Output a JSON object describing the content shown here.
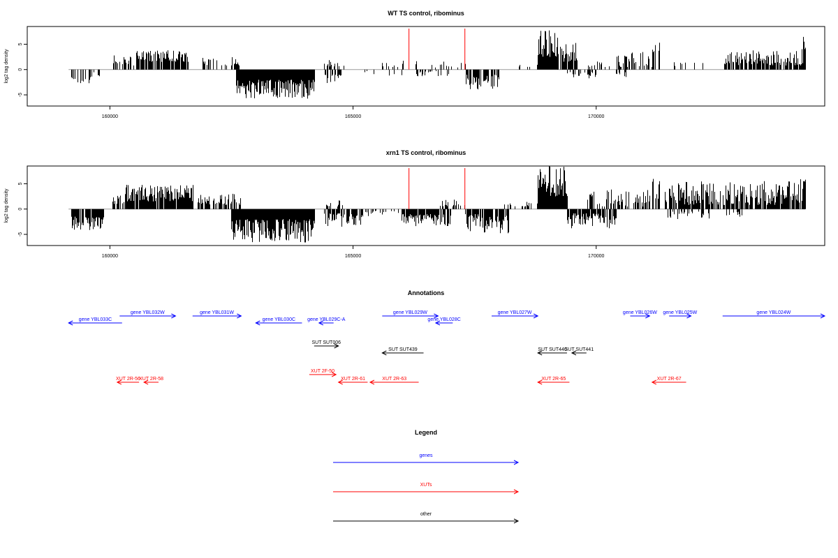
{
  "chart_data": [
    {
      "type": "bar",
      "title": "WT TS control, ribominus",
      "ylabel": "log2 tag density",
      "xlabel": "",
      "xlim": [
        158300,
        174700
      ],
      "ylim": [
        -7.2,
        8.5
      ],
      "yticks": [
        -5,
        0,
        5
      ],
      "xticks": [
        160000,
        165000,
        170000
      ],
      "marker_positions": [
        166150,
        167300
      ],
      "segments": [
        {
          "range": [
            159200,
            159600
          ],
          "sign": -1,
          "min": 1.5,
          "max": 2.7,
          "density": 0.5
        },
        {
          "range": [
            159600,
            159900
          ],
          "sign": -1,
          "min": 0.5,
          "max": 1.5,
          "density": 0.3
        },
        {
          "range": [
            160050,
            160500
          ],
          "sign": 1,
          "min": 0.8,
          "max": 3.0,
          "density": 0.55
        },
        {
          "range": [
            160500,
            161600
          ],
          "sign": 1,
          "min": 1.5,
          "max": 4.0,
          "density": 0.8
        },
        {
          "range": [
            161900,
            162600
          ],
          "sign": 1,
          "min": 0.8,
          "max": 2.8,
          "density": 0.4
        },
        {
          "range": [
            162550,
            162650
          ],
          "sign": 1,
          "min": 0.8,
          "max": 1.4,
          "density": 1.0
        },
        {
          "range": [
            162600,
            164200
          ],
          "sign": -1,
          "min": 2.0,
          "max": 5.8,
          "density": 1.0
        },
        {
          "range": [
            164400,
            164750
          ],
          "sign": -1,
          "min": 1.0,
          "max": 2.8,
          "density": 0.5
        },
        {
          "range": [
            164400,
            164800
          ],
          "sign": 1,
          "min": 0.6,
          "max": 2.0,
          "density": 0.3
        },
        {
          "range": [
            165000,
            165500
          ],
          "sign": -1,
          "min": 0.3,
          "max": 1.2,
          "density": 0.15
        },
        {
          "range": [
            165400,
            166300
          ],
          "sign": 1,
          "min": 0.5,
          "max": 1.8,
          "density": 0.2
        },
        {
          "range": [
            165700,
            166100
          ],
          "sign": -1,
          "min": 0.8,
          "max": 2.5,
          "density": 0.25
        },
        {
          "range": [
            166300,
            167000
          ],
          "sign": -1,
          "min": 0.3,
          "max": 1.4,
          "density": 0.3
        },
        {
          "range": [
            166600,
            167300
          ],
          "sign": 1,
          "min": 0.4,
          "max": 1.6,
          "density": 0.25
        },
        {
          "range": [
            167300,
            168000
          ],
          "sign": -1,
          "min": 1.0,
          "max": 4.0,
          "density": 0.7
        },
        {
          "range": [
            168400,
            168800
          ],
          "sign": 1,
          "min": 0.5,
          "max": 1.2,
          "density": 0.2
        },
        {
          "range": [
            168800,
            169200
          ],
          "sign": 1,
          "min": 2.5,
          "max": 8.0,
          "density": 1.0
        },
        {
          "range": [
            169200,
            169600
          ],
          "sign": 1,
          "min": 1.5,
          "max": 5.5,
          "density": 0.8
        },
        {
          "range": [
            169400,
            170000
          ],
          "sign": -1,
          "min": 0.5,
          "max": 2.0,
          "density": 0.5
        },
        {
          "range": [
            169800,
            170600
          ],
          "sign": 1,
          "min": 0.5,
          "max": 1.8,
          "density": 0.3
        },
        {
          "range": [
            170400,
            170600
          ],
          "sign": -1,
          "min": 0.5,
          "max": 1.5,
          "density": 0.4
        },
        {
          "range": [
            170400,
            171200
          ],
          "sign": 1,
          "min": 0.5,
          "max": 3.5,
          "density": 0.5
        },
        {
          "range": [
            171100,
            171300
          ],
          "sign": 1,
          "min": 2.5,
          "max": 6.0,
          "density": 0.4
        },
        {
          "range": [
            171600,
            171900
          ],
          "sign": 1,
          "min": 0.5,
          "max": 1.5,
          "density": 0.2
        },
        {
          "range": [
            172000,
            172200
          ],
          "sign": 1,
          "min": 0.8,
          "max": 1.5,
          "density": 0.5
        },
        {
          "range": [
            172600,
            174300
          ],
          "sign": 1,
          "min": 0.8,
          "max": 3.8,
          "density": 0.75
        },
        {
          "range": [
            174200,
            174300
          ],
          "sign": 1,
          "min": 4.0,
          "max": 6.5,
          "density": 0.5
        }
      ]
    },
    {
      "type": "bar",
      "title": "xrn1 TS control, ribominus",
      "ylabel": "log2 tag density",
      "xlabel": "",
      "xlim": [
        158300,
        174700
      ],
      "ylim": [
        -7.2,
        8.5
      ],
      "yticks": [
        -5,
        0,
        5
      ],
      "xticks": [
        160000,
        165000,
        170000
      ],
      "marker_positions": [
        166150,
        167300
      ],
      "segments": [
        {
          "range": [
            159200,
            159900
          ],
          "sign": -1,
          "min": 1.5,
          "max": 4.2,
          "density": 0.85
        },
        {
          "range": [
            160050,
            160400
          ],
          "sign": 1,
          "min": 1.0,
          "max": 2.8,
          "density": 0.6
        },
        {
          "range": [
            160300,
            161700
          ],
          "sign": 1,
          "min": 1.5,
          "max": 4.8,
          "density": 0.9
        },
        {
          "range": [
            161700,
            162700
          ],
          "sign": 1,
          "min": 0.8,
          "max": 3.2,
          "density": 0.6
        },
        {
          "range": [
            162500,
            164200
          ],
          "sign": -1,
          "min": 2.0,
          "max": 6.6,
          "density": 1.0
        },
        {
          "range": [
            164400,
            165200
          ],
          "sign": -1,
          "min": 0.8,
          "max": 3.5,
          "density": 0.7
        },
        {
          "range": [
            164400,
            164800
          ],
          "sign": 1,
          "min": 0.5,
          "max": 1.8,
          "density": 0.3
        },
        {
          "range": [
            165200,
            166000
          ],
          "sign": -1,
          "min": 0.3,
          "max": 1.5,
          "density": 0.3
        },
        {
          "range": [
            166000,
            167000
          ],
          "sign": -1,
          "min": 1.0,
          "max": 3.5,
          "density": 0.8
        },
        {
          "range": [
            166700,
            167300
          ],
          "sign": 1,
          "min": 0.5,
          "max": 2.0,
          "density": 0.35
        },
        {
          "range": [
            167300,
            168200
          ],
          "sign": -1,
          "min": 1.0,
          "max": 4.8,
          "density": 0.8
        },
        {
          "range": [
            168000,
            168800
          ],
          "sign": 1,
          "min": 0.5,
          "max": 1.6,
          "density": 0.25
        },
        {
          "range": [
            168800,
            169400
          ],
          "sign": 1,
          "min": 2.5,
          "max": 8.5,
          "density": 1.0
        },
        {
          "range": [
            169400,
            170400
          ],
          "sign": -1,
          "min": 0.8,
          "max": 3.8,
          "density": 0.75
        },
        {
          "range": [
            169800,
            171200
          ],
          "sign": 1,
          "min": 0.5,
          "max": 4.0,
          "density": 0.6
        },
        {
          "range": [
            171000,
            171300
          ],
          "sign": 1,
          "min": 2.0,
          "max": 7.0,
          "density": 0.4
        },
        {
          "range": [
            171400,
            174300
          ],
          "sign": 1,
          "min": 0.8,
          "max": 5.5,
          "density": 0.8
        },
        {
          "range": [
            171400,
            173000
          ],
          "sign": -1,
          "min": 0.5,
          "max": 2.0,
          "density": 0.3
        },
        {
          "range": [
            174200,
            174300
          ],
          "sign": 1,
          "min": 4.0,
          "max": 7.0,
          "density": 0.5
        }
      ]
    }
  ],
  "annotations": {
    "title": "Annotations",
    "colors": {
      "gene": "#0000ff",
      "xut": "#ff0000",
      "other": "#000000"
    },
    "features": [
      {
        "label": "gene YBL033C",
        "kind": "gene",
        "start": 159150,
        "end": 160250,
        "strand": "-",
        "row": 2
      },
      {
        "label": "gene YBL032W",
        "kind": "gene",
        "start": 160200,
        "end": 161350,
        "strand": "+",
        "row": 1
      },
      {
        "label": "gene YBL031W",
        "kind": "gene",
        "start": 161700,
        "end": 162700,
        "strand": "+",
        "row": 1
      },
      {
        "label": "gene YBL030C",
        "kind": "gene",
        "start": 163000,
        "end": 163950,
        "strand": "-",
        "row": 2
      },
      {
        "label": "gene YBL029C-A",
        "kind": "gene",
        "start": 164300,
        "end": 164600,
        "strand": "-",
        "row": 2
      },
      {
        "label": "gene YBL029W",
        "kind": "gene",
        "start": 165600,
        "end": 166750,
        "strand": "+",
        "row": 1
      },
      {
        "label": "gene YBL028C",
        "kind": "gene",
        "start": 166700,
        "end": 167050,
        "strand": "-",
        "row": 2
      },
      {
        "label": "gene YBL027W",
        "kind": "gene",
        "start": 167850,
        "end": 168800,
        "strand": "+",
        "row": 1
      },
      {
        "label": "gene YBL026W",
        "kind": "gene",
        "start": 170700,
        "end": 171100,
        "strand": "+",
        "row": 1
      },
      {
        "label": "gene YBL025W",
        "kind": "gene",
        "start": 171500,
        "end": 171950,
        "strand": "+",
        "row": 1
      },
      {
        "label": "gene YBL024W",
        "kind": "gene",
        "start": 172600,
        "end": 174700,
        "strand": "+",
        "row": 1
      },
      {
        "label": "SUT SUT006",
        "kind": "other",
        "start": 164200,
        "end": 164700,
        "strand": "+",
        "row": 3
      },
      {
        "label": "SUT SUT439",
        "kind": "other",
        "start": 165600,
        "end": 166450,
        "strand": "-",
        "row": 4
      },
      {
        "label": "SUT SUT440",
        "kind": "other",
        "start": 168800,
        "end": 169400,
        "strand": "-",
        "row": 4
      },
      {
        "label": "SUT SUT441",
        "kind": "other",
        "start": 169500,
        "end": 169800,
        "strand": "-",
        "row": 4
      },
      {
        "label": "XUT 2R-56",
        "kind": "xut",
        "start": 160150,
        "end": 160600,
        "strand": "-",
        "row": 6
      },
      {
        "label": "XUT 2R-58",
        "kind": "xut",
        "start": 160700,
        "end": 161000,
        "strand": "-",
        "row": 6
      },
      {
        "label": "XUT 2F-50",
        "kind": "xut",
        "start": 164100,
        "end": 164650,
        "strand": "+",
        "row": 5
      },
      {
        "label": "XUT 2R-61",
        "kind": "xut",
        "start": 164700,
        "end": 165300,
        "strand": "-",
        "row": 6
      },
      {
        "label": "XUT 2R-63",
        "kind": "xut",
        "start": 165350,
        "end": 166350,
        "strand": "-",
        "row": 6
      },
      {
        "label": "XUT 2R-65",
        "kind": "xut",
        "start": 168800,
        "end": 169450,
        "strand": "-",
        "row": 6
      },
      {
        "label": "XUT 2R-67",
        "kind": "xut",
        "start": 171150,
        "end": 171850,
        "strand": "-",
        "row": 6
      }
    ]
  },
  "legend": {
    "title": "Legend",
    "items": [
      {
        "label": "genes",
        "kind": "gene"
      },
      {
        "label": "XUTs",
        "kind": "xut"
      },
      {
        "label": "other",
        "kind": "other"
      }
    ]
  }
}
